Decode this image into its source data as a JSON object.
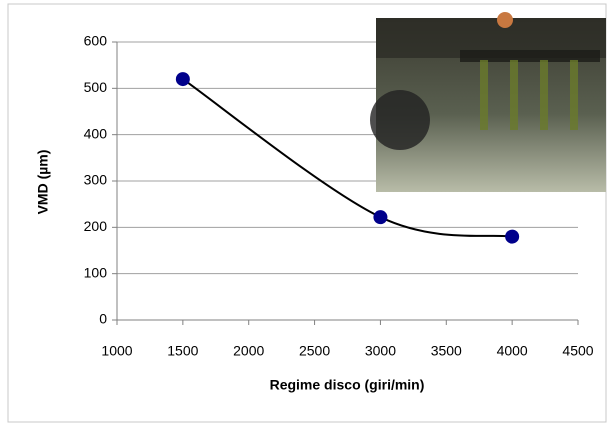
{
  "chart_data": {
    "type": "scatter",
    "x_label": "Regime disco (giri/min)",
    "y_label": "VMD (µm)",
    "series": [
      {
        "color": "#00008b",
        "x": [
          1500,
          3000,
          4000
        ],
        "values": [
          520,
          222,
          180
        ]
      }
    ],
    "xlim": [
      1000,
      4500
    ],
    "xticks": [
      1000,
      1500,
      2000,
      2500,
      3000,
      3500,
      4000,
      4500
    ],
    "ylim": [
      0,
      600
    ],
    "yticks": [
      0,
      100,
      200,
      300,
      400,
      500,
      600
    ],
    "grid": true,
    "trendline": true
  }
}
